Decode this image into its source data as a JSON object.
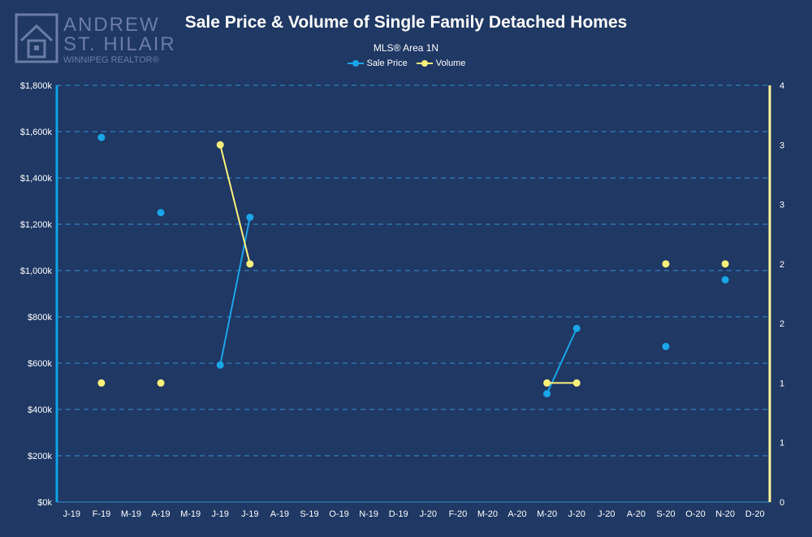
{
  "logo": {
    "line1": "ANDREW",
    "line2": "ST. HILAIRE",
    "line3": "WINNIPEG REALTOR®"
  },
  "colors": {
    "background": "#1f3864",
    "sale_price": "#1aa6e8",
    "volume": "#fff27a",
    "grid": "#3a8fd0",
    "left_axis": "#0ea5e9",
    "right_axis": "#fff59a"
  },
  "chart_data": {
    "type": "line",
    "title": "Sale Price & Volume of Single Family Detached Homes",
    "subtitle": "MLS® Area 1N",
    "legend_position": "top-center",
    "grid": true,
    "categories": [
      "J-19",
      "F-19",
      "M-19",
      "A-19",
      "M-19",
      "J-19",
      "J-19",
      "A-19",
      "S-19",
      "O-19",
      "N-19",
      "D-19",
      "J-20",
      "F-20",
      "M-20",
      "A-20",
      "M-20",
      "J-20",
      "J-20",
      "A-20",
      "S-20",
      "O-20",
      "N-20",
      "D-20"
    ],
    "series": [
      {
        "name": "Sale Price",
        "axis": "left",
        "values": [
          null,
          1575,
          null,
          1250,
          null,
          592,
          1230,
          null,
          null,
          null,
          null,
          null,
          null,
          null,
          null,
          null,
          468,
          750,
          null,
          null,
          672,
          null,
          960,
          null
        ]
      },
      {
        "name": "Volume",
        "axis": "right",
        "values": [
          null,
          1,
          null,
          1,
          null,
          3,
          2,
          null,
          null,
          null,
          null,
          null,
          null,
          null,
          null,
          null,
          1,
          1,
          null,
          null,
          2,
          null,
          2,
          null
        ]
      }
    ],
    "left_axis": {
      "range": [
        0,
        1800
      ],
      "tick_values": [
        0,
        200,
        400,
        600,
        800,
        1000,
        1200,
        1400,
        1600,
        1800
      ],
      "tick_labels": [
        "$0k",
        "$200k",
        "$400k",
        "$600k",
        "$800k",
        "$1,000k",
        "$1,200k",
        "$1,400k",
        "$1,600k",
        "$1,800k"
      ]
    },
    "right_axis": {
      "range": [
        0,
        3.5
      ],
      "tick_values": [
        0,
        0.5,
        1,
        1.5,
        2,
        2.5,
        3,
        3.5
      ],
      "tick_labels": [
        "0",
        "1",
        "1",
        "2",
        "2",
        "3",
        "3",
        "4"
      ]
    }
  }
}
